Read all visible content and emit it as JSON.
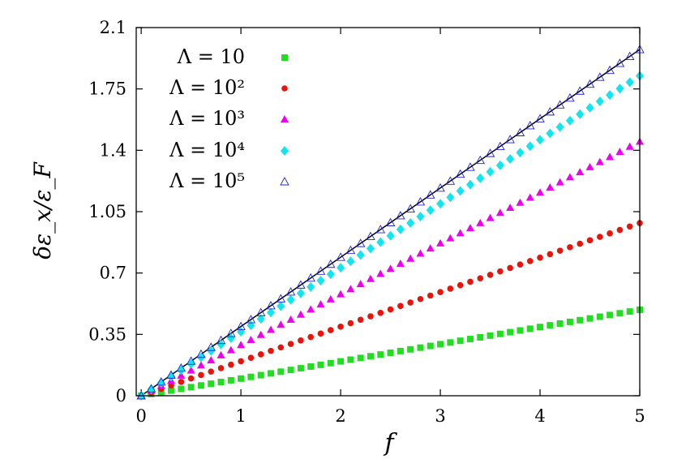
{
  "chart_data": {
    "type": "scatter",
    "title": "",
    "xlabel": "f",
    "ylabel": "δε_x/ε_F",
    "xlim": [
      -0.05,
      5.0
    ],
    "ylim": [
      0,
      2.1
    ],
    "xticks": [
      0,
      1,
      2,
      3,
      4,
      5
    ],
    "xtick_labels": [
      "0",
      "1",
      "2",
      "3",
      "4",
      "5"
    ],
    "yticks": [
      0,
      0.35,
      0.7,
      1.05,
      1.4,
      1.75,
      2.1
    ],
    "ytick_labels": [
      "0",
      "0.35",
      "0.7",
      "1.05",
      "1.4",
      "1.75",
      "2.1"
    ],
    "grid": false,
    "legend_position": "top-left",
    "x_start": 0,
    "x_step": 0.1,
    "n_points": 51,
    "series": [
      {
        "name": "Λ = 10",
        "marker": "square",
        "color": "#22dd22",
        "slope": 0.098
      },
      {
        "name": "Λ = 10²",
        "marker": "circle",
        "color": "#e8140c",
        "slope": 0.197
      },
      {
        "name": "Λ = 10³",
        "marker": "triangle",
        "color": "#ee00ee",
        "slope": 0.29
      },
      {
        "name": "Λ = 10⁴",
        "marker": "diamond",
        "color": "#11e5ee",
        "slope": 0.365
      },
      {
        "name": "Λ = 10⁵",
        "marker": "triangle-open",
        "color": "#2222cc",
        "slope": 0.395
      }
    ],
    "reference_line": {
      "color": "#000000",
      "slope": 0.395,
      "x_range": [
        0,
        5
      ]
    }
  }
}
